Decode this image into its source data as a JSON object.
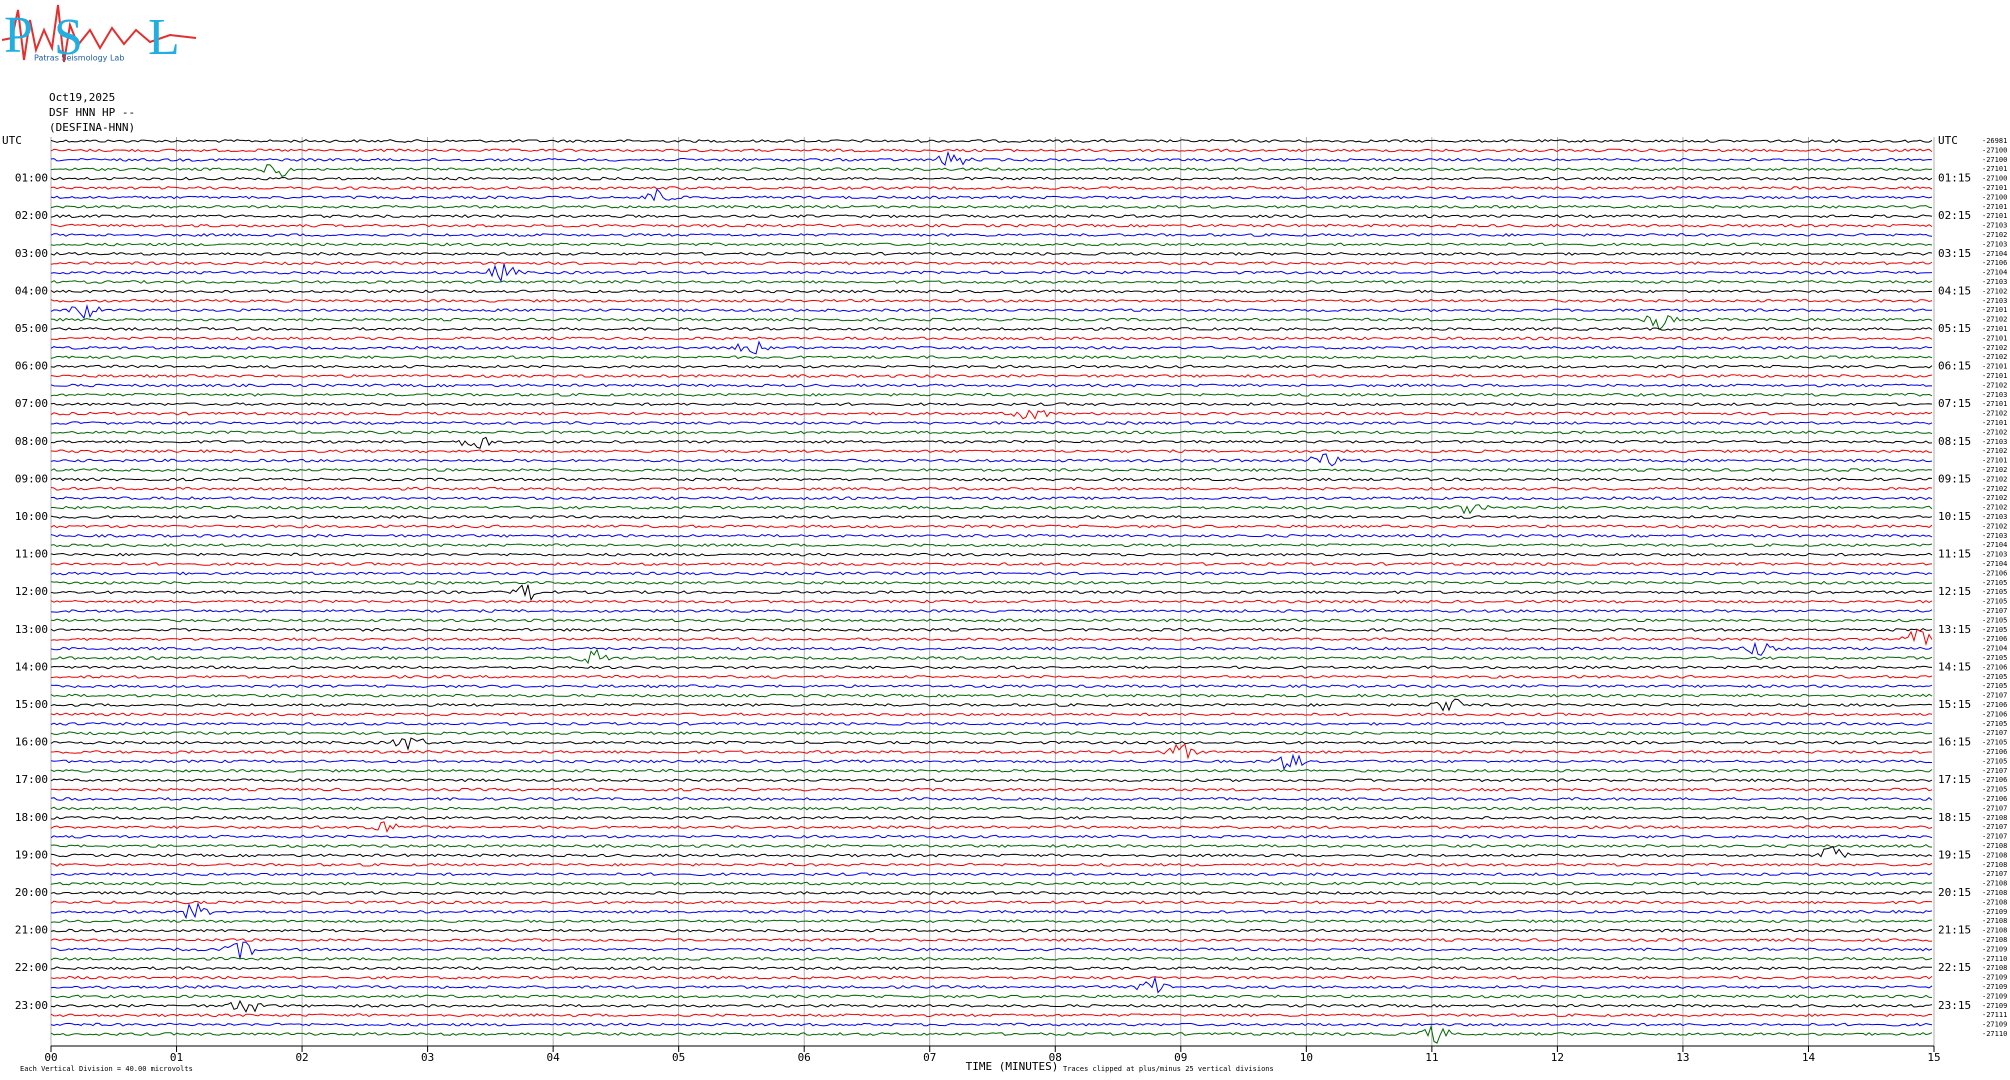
{
  "logo": {
    "letters": [
      "P",
      "S",
      "L"
    ],
    "subtitle": "Patras Seismology Lab"
  },
  "header": {
    "date": "Oct19,2025",
    "station": "DSF HNN HP --",
    "name": "(DESFINA-HNN)"
  },
  "left_labels": [
    "UTC",
    "01:00",
    "02:00",
    "03:00",
    "04:00",
    "05:00",
    "06:00",
    "07:00",
    "08:00",
    "09:00",
    "10:00",
    "11:00",
    "12:00",
    "13:00",
    "14:00",
    "15:00",
    "16:00",
    "17:00",
    "18:00",
    "19:00",
    "20:00",
    "21:00",
    "22:00",
    "23:00"
  ],
  "right_labels": [
    "UTC",
    "01:15",
    "02:15",
    "03:15",
    "04:15",
    "05:15",
    "06:15",
    "07:15",
    "08:15",
    "09:15",
    "10:15",
    "11:15",
    "12:15",
    "13:15",
    "14:15",
    "15:15",
    "16:15",
    "17:15",
    "18:15",
    "19:15",
    "20:15",
    "21:15",
    "22:15",
    "23:15"
  ],
  "trace_counts": [
    "-26981",
    "-27100",
    "-27100",
    "-27101",
    "-27100",
    "-27101",
    "-27100",
    "-27101",
    "-27101",
    "-27103",
    "-27102",
    "-27103",
    "-27104",
    "-27106",
    "-27104",
    "-27103",
    "-27102",
    "-27103",
    "-27101",
    "-27102",
    "-27101",
    "-27101",
    "-27102",
    "-27102",
    "-27101",
    "-27101",
    "-27102",
    "-27103",
    "-27101",
    "-27102",
    "-27101",
    "-27102",
    "-27103",
    "-27102",
    "-27101",
    "-27102",
    "-27102",
    "-27102",
    "-27102",
    "-27102",
    "-27103",
    "-27102",
    "-27103",
    "-27104",
    "-27103",
    "-27104",
    "-27106",
    "-27105",
    "-27105",
    "-27105",
    "-27107",
    "-27105",
    "-27105",
    "-27106",
    "-27104",
    "-27105",
    "-27106",
    "-27105",
    "-27105",
    "-27107",
    "-27106",
    "-27106",
    "-27105",
    "-27107",
    "-27105",
    "-27106",
    "-27105",
    "-27107",
    "-27106",
    "-27105",
    "-27106",
    "-27107",
    "-27108",
    "-27107",
    "-27107",
    "-27108",
    "-27108",
    "-27108",
    "-27107",
    "-27108",
    "-27108",
    "-27108",
    "-27109",
    "-27108",
    "-27108",
    "-27108",
    "-27109",
    "-27110",
    "-27108",
    "-27109",
    "-27109",
    "-27109",
    "-27109",
    "-27111",
    "-27109",
    "-27110"
  ],
  "x_axis": {
    "ticks": [
      "00",
      "01",
      "02",
      "03",
      "04",
      "05",
      "06",
      "07",
      "08",
      "09",
      "10",
      "11",
      "12",
      "13",
      "14",
      "15"
    ],
    "title": "TIME (MINUTES)"
  },
  "footer": {
    "scale": "Each Vertical Division =   40.00 microvolts",
    "clip": "Traces clipped at plus/minus 25 vertical divisions"
  }
}
